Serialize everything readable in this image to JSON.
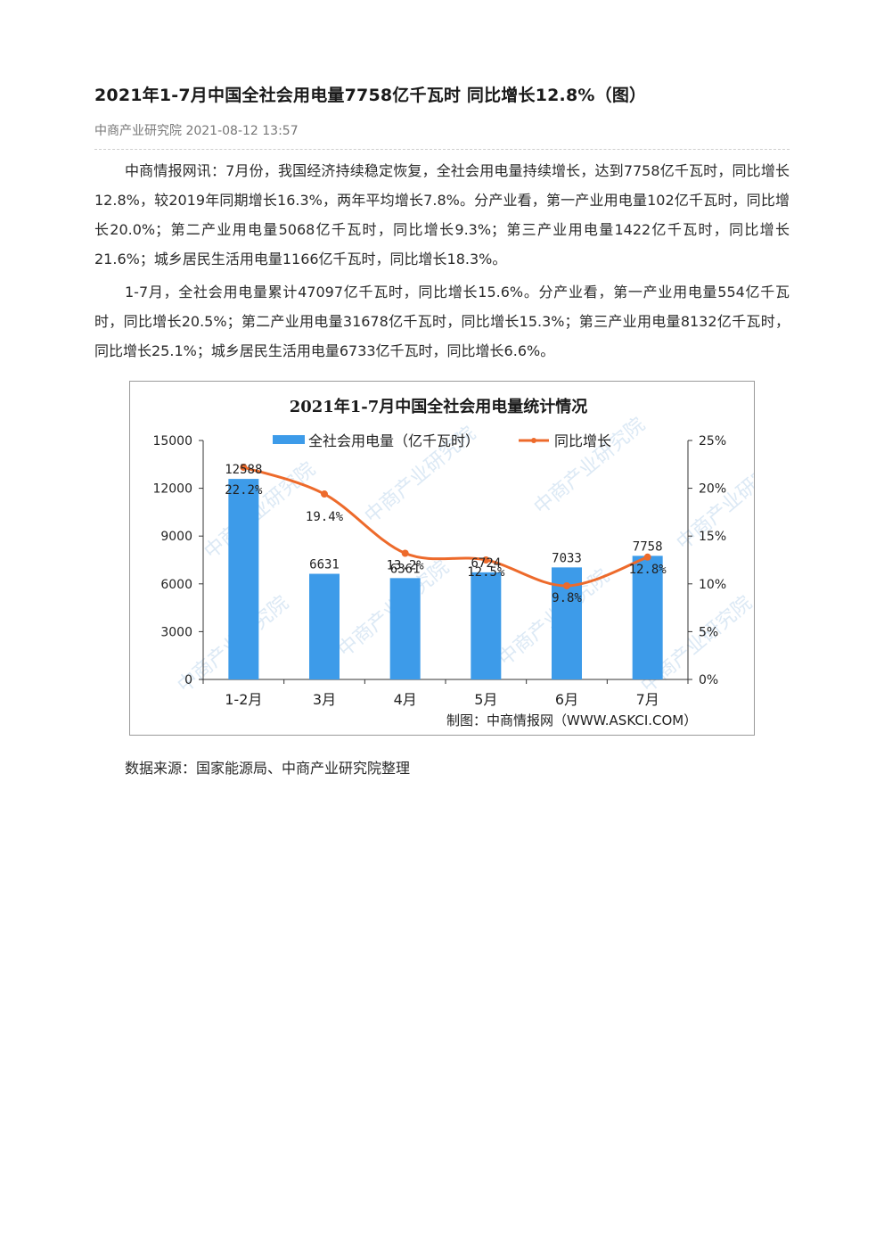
{
  "article": {
    "title": "2021年1-7月中国全社会用电量7758亿千瓦时 同比增长12.8%（图）",
    "author": "中商产业研究院",
    "datetime": "2021-08-12 13:57",
    "paragraphs": [
      "中商情报网讯：7月份，我国经济持续稳定恢复，全社会用电量持续增长，达到7758亿千瓦时，同比增长12.8%，较2019年同期增长16.3%，两年平均增长7.8%。分产业看，第一产业用电量102亿千瓦时，同比增长20.0%；第二产业用电量5068亿千瓦时，同比增长9.3%；第三产业用电量1422亿千瓦时，同比增长21.6%；城乡居民生活用电量1166亿千瓦时，同比增长18.3%。",
      "1-7月，全社会用电量累计47097亿千瓦时，同比增长15.6%。分产业看，第一产业用电量554亿千瓦时，同比增长20.5%；第二产业用电量31678亿千瓦时，同比增长15.3%；第三产业用电量8132亿千瓦时，同比增长25.1%；城乡居民生活用电量6733亿千瓦时，同比增长6.6%。"
    ],
    "source_note": "数据来源：国家能源局、中商产业研究院整理"
  },
  "chart_data": {
    "type": "bar",
    "title": "2021年1-7月中国全社会用电量统计情况",
    "categories": [
      "1-2月",
      "3月",
      "4月",
      "5月",
      "6月",
      "7月"
    ],
    "series": [
      {
        "name": "全社会用电量（亿千瓦时）",
        "type": "bar",
        "axis": "left",
        "values": [
          12588,
          6631,
          6361,
          6724,
          7033,
          7758
        ],
        "labels": [
          "12588",
          "6631",
          "6361",
          "6724",
          "7033",
          "7758"
        ],
        "color": "#3d9be9"
      },
      {
        "name": "同比增长",
        "type": "line",
        "axis": "right",
        "values": [
          22.2,
          19.4,
          13.2,
          12.5,
          9.8,
          12.8
        ],
        "labels": [
          "22.2%",
          "19.4%",
          "13.2%",
          "12.5%",
          "9.8%",
          "12.8%"
        ],
        "color": "#ed6a2b"
      }
    ],
    "y_left": {
      "min": 0,
      "max": 15000,
      "ticks": [
        "0",
        "3000",
        "6000",
        "9000",
        "12000",
        "15000"
      ]
    },
    "y_right": {
      "min": 0,
      "max": 25,
      "ticks": [
        "0%",
        "5%",
        "10%",
        "15%",
        "20%",
        "25%"
      ]
    },
    "legend_position": "top",
    "credit": "制图：中商情报网（WWW.ASKCI.COM）",
    "watermark": "中商产业研究院"
  }
}
